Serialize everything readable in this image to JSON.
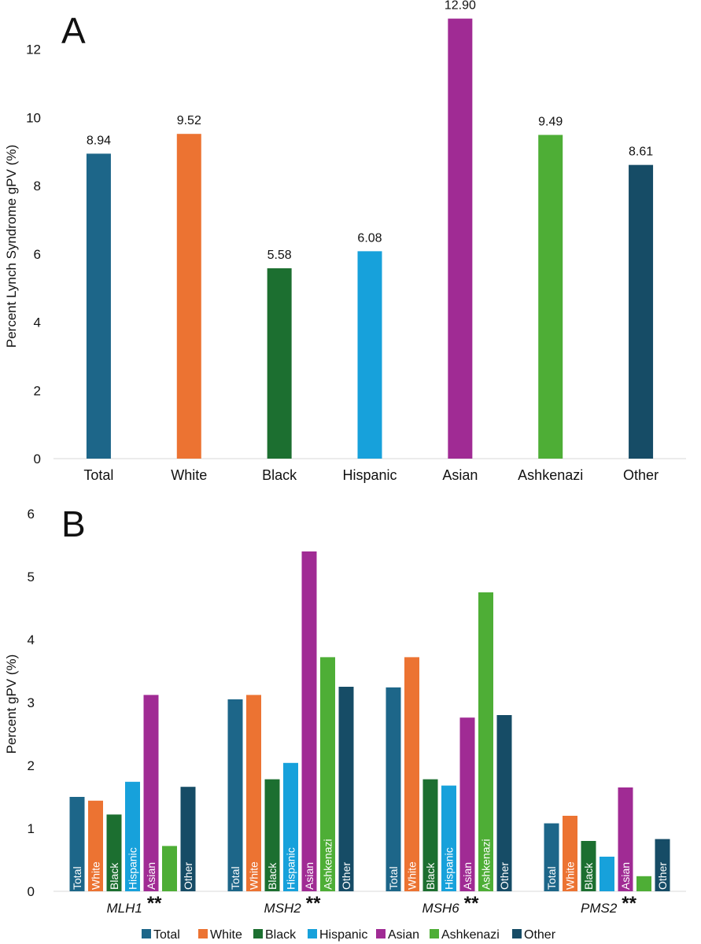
{
  "chart_data": [
    {
      "type": "bar",
      "panel": "A",
      "categories": [
        "Total",
        "White",
        "Black",
        "Hispanic",
        "Asian",
        "Ashkenazi",
        "Other"
      ],
      "values": [
        8.94,
        9.52,
        5.58,
        6.08,
        12.9,
        9.49,
        8.61
      ],
      "value_labels": [
        "8.94",
        "9.52",
        "5.58",
        "6.08",
        "12.90",
        "9.49",
        "8.61"
      ],
      "colors": [
        "#1d6689",
        "#ec7332",
        "#1c6f30",
        "#17a1db",
        "#a02b94",
        "#4eae36",
        "#164c66"
      ],
      "ylabel": "Percent Lynch Syndrome gPV (%)",
      "xlabel": "",
      "ylim": [
        0,
        13
      ],
      "yticks": [
        0,
        2,
        4,
        6,
        8,
        10,
        12
      ],
      "ytick_labels": [
        "0",
        "2",
        "4",
        "6",
        "8",
        "10",
        "12"
      ],
      "grid": false
    },
    {
      "type": "bar",
      "panel": "B",
      "groups": [
        {
          "name": "MLH1",
          "annotation": "**"
        },
        {
          "name": "MSH2",
          "annotation": "**"
        },
        {
          "name": "MSH6",
          "annotation": "**"
        },
        {
          "name": "PMS2",
          "annotation": "**"
        }
      ],
      "series": [
        {
          "name": "Total",
          "color": "#1d6689",
          "values": [
            1.5,
            3.05,
            3.24,
            1.08
          ]
        },
        {
          "name": "White",
          "color": "#ec7332",
          "values": [
            1.44,
            3.12,
            3.72,
            1.2
          ]
        },
        {
          "name": "Black",
          "color": "#1c6f30",
          "values": [
            1.22,
            1.78,
            1.78,
            0.8
          ]
        },
        {
          "name": "Hispanic",
          "color": "#17a1db",
          "values": [
            1.74,
            2.04,
            1.68,
            0.55
          ]
        },
        {
          "name": "Asian",
          "color": "#a02b94",
          "values": [
            3.12,
            5.4,
            2.76,
            1.65
          ]
        },
        {
          "name": "Ashkenazi",
          "color": "#4eae36",
          "values": [
            0.72,
            3.72,
            4.75,
            0.24
          ]
        },
        {
          "name": "Other",
          "color": "#164c66",
          "values": [
            1.66,
            3.25,
            2.8,
            0.83
          ]
        }
      ],
      "bar_labels": [
        [
          "Total",
          "White",
          "Black",
          "Hispanic",
          "Asian",
          "",
          "Other"
        ],
        [
          "Total",
          "White",
          "Black",
          "Hispanic",
          "Asian",
          "Ashkenazi",
          "Other"
        ],
        [
          "Total",
          "White",
          "Black",
          "Hispanic",
          "Asian",
          "Ashkenazi",
          "Other"
        ],
        [
          "Total",
          "White",
          "Black",
          "",
          "Asian",
          "",
          "Other"
        ]
      ],
      "ylabel": "Percent gPV (%)",
      "xlabel": "",
      "ylim": [
        0,
        6
      ],
      "yticks": [
        0,
        1,
        2,
        3,
        4,
        5,
        6
      ],
      "ytick_labels": [
        "0",
        "1",
        "2",
        "3",
        "4",
        "5",
        "6"
      ],
      "legend": {
        "placement": "bottom-center",
        "entries": [
          "Total",
          "White",
          "Black",
          "Hispanic",
          "Asian",
          "Ashkenazi",
          "Other"
        ]
      },
      "grid": false
    }
  ]
}
